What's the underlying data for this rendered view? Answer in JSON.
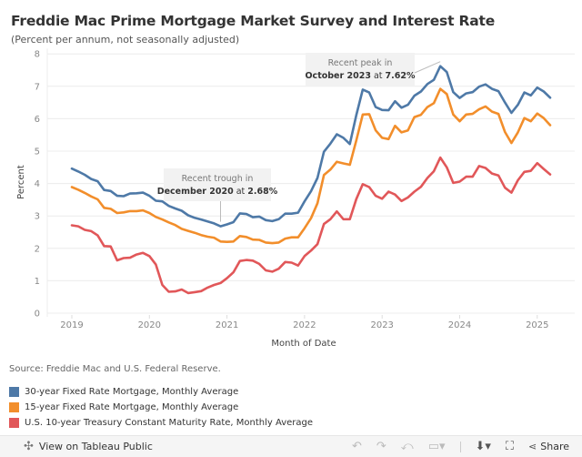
{
  "header": {
    "title": "Freddie Mac Prime Mortgage Market Survey and Interest Rate",
    "subtitle": "(Percent per annum, not seasonally adjusted)"
  },
  "source": "Source: Freddie Mac and U.S. Federal Reserve.",
  "footer": {
    "view_label": "View on Tableau Public",
    "share_label": "Share",
    "icons": [
      "undo-icon",
      "redo-icon",
      "revert-icon",
      "pause-icon",
      "download-icon",
      "fullscreen-icon",
      "share-icon"
    ]
  },
  "chart_data": {
    "type": "line",
    "title": "Freddie Mac Prime Mortgage Market Survey and Interest Rate",
    "subtitle": "(Percent per annum, not seasonally adjusted)",
    "xlabel": "Month of Date",
    "ylabel": "Percent",
    "ylim": [
      0,
      8
    ],
    "yticks": [
      "0",
      "1",
      "2",
      "3",
      "4",
      "5",
      "6",
      "7",
      "8"
    ],
    "xticks": [
      "2019",
      "2020",
      "2021",
      "2022",
      "2023",
      "2024",
      "2025"
    ],
    "x_start": "2019-01",
    "x_end": "2025-03",
    "frequency": "monthly",
    "grid": true,
    "legend_position": "bottom-left",
    "series": [
      {
        "name": "30-year Fixed Rate Mortgage, Monthly Average",
        "color": "#4e79a7",
        "values": [
          4.46,
          4.37,
          4.27,
          4.14,
          4.07,
          3.8,
          3.77,
          3.62,
          3.61,
          3.69,
          3.7,
          3.72,
          3.62,
          3.47,
          3.45,
          3.31,
          3.23,
          3.16,
          3.02,
          2.94,
          2.89,
          2.83,
          2.77,
          2.68,
          2.74,
          2.81,
          3.08,
          3.06,
          2.96,
          2.98,
          2.87,
          2.84,
          2.9,
          3.07,
          3.07,
          3.1,
          3.45,
          3.76,
          4.17,
          4.98,
          5.23,
          5.52,
          5.41,
          5.22,
          6.11,
          6.9,
          6.81,
          6.36,
          6.27,
          6.26,
          6.54,
          6.34,
          6.43,
          6.71,
          6.84,
          7.07,
          7.2,
          7.62,
          7.44,
          6.82,
          6.64,
          6.78,
          6.82,
          6.99,
          7.06,
          6.92,
          6.85,
          6.5,
          6.18,
          6.43,
          6.81,
          6.72,
          6.96,
          6.84,
          6.65
        ]
      },
      {
        "name": "15-year Fixed Rate Mortgage, Monthly Average",
        "color": "#f28e2b",
        "values": [
          3.89,
          3.81,
          3.71,
          3.6,
          3.51,
          3.25,
          3.22,
          3.09,
          3.11,
          3.15,
          3.15,
          3.17,
          3.09,
          2.97,
          2.89,
          2.8,
          2.72,
          2.6,
          2.54,
          2.48,
          2.41,
          2.36,
          2.33,
          2.21,
          2.2,
          2.21,
          2.38,
          2.35,
          2.27,
          2.26,
          2.18,
          2.16,
          2.18,
          2.3,
          2.34,
          2.34,
          2.62,
          2.93,
          3.39,
          4.26,
          4.43,
          4.67,
          4.62,
          4.58,
          5.33,
          6.13,
          6.14,
          5.64,
          5.41,
          5.37,
          5.78,
          5.58,
          5.64,
          6.05,
          6.12,
          6.36,
          6.48,
          6.92,
          6.76,
          6.13,
          5.92,
          6.13,
          6.15,
          6.29,
          6.38,
          6.22,
          6.15,
          5.59,
          5.25,
          5.58,
          6.02,
          5.92,
          6.16,
          6.02,
          5.8
        ]
      },
      {
        "name": "U.S. 10-year Treasury Constant Maturity Rate, Monthly Average",
        "color": "#e15759",
        "values": [
          2.71,
          2.68,
          2.57,
          2.53,
          2.4,
          2.07,
          2.06,
          1.63,
          1.7,
          1.71,
          1.81,
          1.86,
          1.76,
          1.5,
          0.87,
          0.66,
          0.67,
          0.73,
          0.62,
          0.65,
          0.68,
          0.79,
          0.87,
          0.93,
          1.08,
          1.26,
          1.61,
          1.64,
          1.62,
          1.52,
          1.32,
          1.28,
          1.37,
          1.58,
          1.56,
          1.47,
          1.76,
          1.93,
          2.13,
          2.75,
          2.9,
          3.14,
          2.9,
          2.9,
          3.52,
          3.98,
          3.89,
          3.62,
          3.53,
          3.75,
          3.66,
          3.46,
          3.57,
          3.75,
          3.9,
          4.17,
          4.38,
          4.8,
          4.5,
          4.02,
          4.06,
          4.21,
          4.21,
          4.54,
          4.48,
          4.31,
          4.25,
          3.87,
          3.72,
          4.1,
          4.36,
          4.39,
          4.63,
          4.45,
          4.28
        ]
      }
    ],
    "annotations": [
      {
        "line1": "Recent trough in",
        "bold1": "December 2020",
        "mid": " at ",
        "bold2": "2.68%",
        "x": "2020-12",
        "value": 2.68
      },
      {
        "line1": "Recent peak in",
        "bold1": "October 2023",
        "mid": " at ",
        "bold2": "7.62%",
        "x": "2023-10",
        "value": 7.62
      }
    ]
  }
}
